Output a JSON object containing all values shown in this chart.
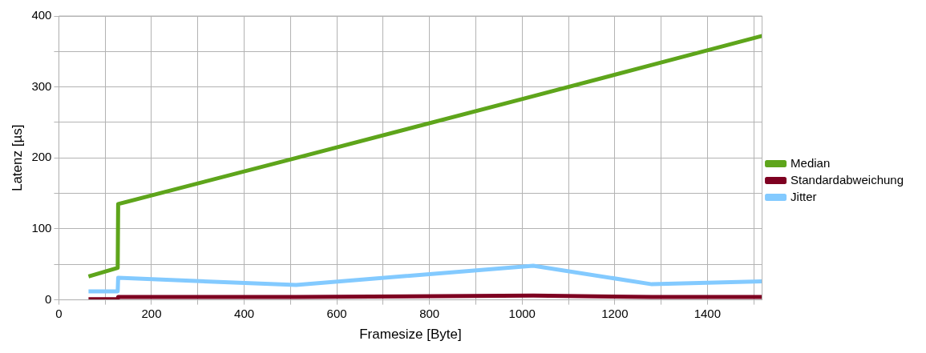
{
  "chart_data": {
    "type": "line",
    "xlabel": "Framesize [Byte]",
    "ylabel": "Latenz [µs]",
    "xlim": [
      0,
      1518
    ],
    "ylim": [
      0,
      400
    ],
    "xticks": [
      0,
      {
        "value": 100,
        "label": null
      },
      200,
      {
        "value": 300,
        "label": null
      },
      400,
      {
        "value": 500,
        "label": null
      },
      600,
      {
        "value": 700,
        "label": null
      },
      800,
      {
        "value": 900,
        "label": null
      },
      1000,
      {
        "value": 1100,
        "label": null
      },
      1200,
      {
        "value": 1300,
        "label": null
      },
      1400,
      {
        "value": 1500,
        "label": null
      }
    ],
    "yticks": [
      0,
      {
        "value": 50,
        "label": null
      },
      100,
      {
        "value": 150,
        "label": null
      },
      200,
      {
        "value": 250,
        "label": null
      },
      300,
      {
        "value": 350,
        "label": null
      },
      400
    ],
    "grid": true,
    "legend": "right",
    "marker": "none",
    "line_style": "solid",
    "series": [
      {
        "name": "Median",
        "color": "#5ea51b",
        "x": [
          64,
          127,
          128,
          512,
          1024,
          1280,
          1518
        ],
        "values": [
          33,
          45,
          135,
          200,
          287,
          331,
          372
        ]
      },
      {
        "name": "Standardabweichung",
        "color": "#7e0021",
        "x": [
          64,
          127,
          128,
          512,
          1024,
          1280,
          1518
        ],
        "values": [
          1,
          1,
          4,
          4,
          6,
          4,
          4
        ]
      },
      {
        "name": "Jitter",
        "color": "#83caff",
        "x": [
          64,
          127,
          128,
          512,
          1024,
          1280,
          1518
        ],
        "values": [
          12,
          12,
          31,
          21,
          48,
          22,
          26
        ]
      }
    ]
  }
}
